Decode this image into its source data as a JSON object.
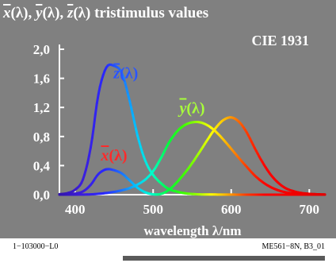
{
  "chart_data": {
    "type": "line",
    "title_parts": [
      {
        "text": "x",
        "bar": true,
        "italic": true
      },
      {
        "text": "(λ), ",
        "bar": false,
        "italic": false
      },
      {
        "text": "y",
        "bar": true,
        "italic": true
      },
      {
        "text": "(λ), ",
        "bar": false,
        "italic": false
      },
      {
        "text": "z",
        "bar": true,
        "italic": true
      },
      {
        "text": "(λ) tristimulus values",
        "bar": false,
        "italic": false
      }
    ],
    "subtitle": "CIE 1931",
    "xlabel": "wavelength λ/nm",
    "xlim": [
      380,
      720
    ],
    "ylim": [
      0.0,
      2.0
    ],
    "xticks": [
      400,
      500,
      600,
      700
    ],
    "yticks": [
      0.0,
      0.4,
      0.8,
      1.2,
      1.6,
      2.0
    ],
    "ytick_labels": [
      "0,0",
      "0,4",
      "0,8",
      "1,2",
      "1,6",
      "2,0"
    ],
    "x": [
      380,
      390,
      400,
      410,
      420,
      430,
      440,
      450,
      460,
      470,
      480,
      490,
      500,
      510,
      520,
      530,
      540,
      550,
      560,
      570,
      580,
      590,
      600,
      610,
      620,
      630,
      640,
      650,
      660,
      670,
      680,
      690,
      700,
      710,
      720
    ],
    "series": [
      {
        "name": "x̄(λ)",
        "label_letter": "x",
        "label_pos_nm": 450,
        "label_pos_y": 0.47,
        "values": [
          0.0014,
          0.0042,
          0.0143,
          0.0435,
          0.1344,
          0.2839,
          0.3483,
          0.3362,
          0.2908,
          0.1954,
          0.0956,
          0.032,
          0.0049,
          0.0093,
          0.0633,
          0.1655,
          0.2904,
          0.4334,
          0.5945,
          0.7621,
          0.9163,
          1.0263,
          1.0622,
          1.0026,
          0.8544,
          0.6424,
          0.4479,
          0.2835,
          0.1649,
          0.0874,
          0.0468,
          0.0227,
          0.0114,
          0.0058,
          0.0029
        ]
      },
      {
        "name": "ȳ(λ)",
        "label_letter": "y",
        "label_pos_nm": 550,
        "label_pos_y": 1.12,
        "values": [
          0.0,
          0.0001,
          0.0004,
          0.0012,
          0.004,
          0.0116,
          0.023,
          0.038,
          0.06,
          0.091,
          0.139,
          0.208,
          0.323,
          0.503,
          0.71,
          0.862,
          0.954,
          0.995,
          0.995,
          0.952,
          0.87,
          0.757,
          0.631,
          0.503,
          0.381,
          0.265,
          0.175,
          0.107,
          0.061,
          0.032,
          0.017,
          0.0082,
          0.0041,
          0.0021,
          0.001
        ]
      },
      {
        "name": "z̄(λ)",
        "label_letter": "z",
        "label_pos_nm": 465,
        "label_pos_y": 1.6,
        "values": [
          0.0065,
          0.0201,
          0.0679,
          0.2074,
          0.6456,
          1.3856,
          1.7471,
          1.7721,
          1.6692,
          1.2876,
          0.813,
          0.4652,
          0.272,
          0.1582,
          0.0782,
          0.0422,
          0.0203,
          0.0087,
          0.0039,
          0.0021,
          0.0017,
          0.0011,
          0.0008,
          0.0003,
          0.0002,
          0.0,
          0.0,
          0.0,
          0.0,
          0.0,
          0.0,
          0.0,
          0.0,
          0.0,
          0.0
        ]
      }
    ],
    "label_colors": {
      "x": "#ff2a2a",
      "y": "#a8ff3a",
      "z": "#2a55ff"
    },
    "grid": false,
    "background": "#808080",
    "plot_background": "#808080"
  },
  "footer": {
    "left": "1−103000−L0",
    "right": "ME561−8N, B3_01"
  }
}
